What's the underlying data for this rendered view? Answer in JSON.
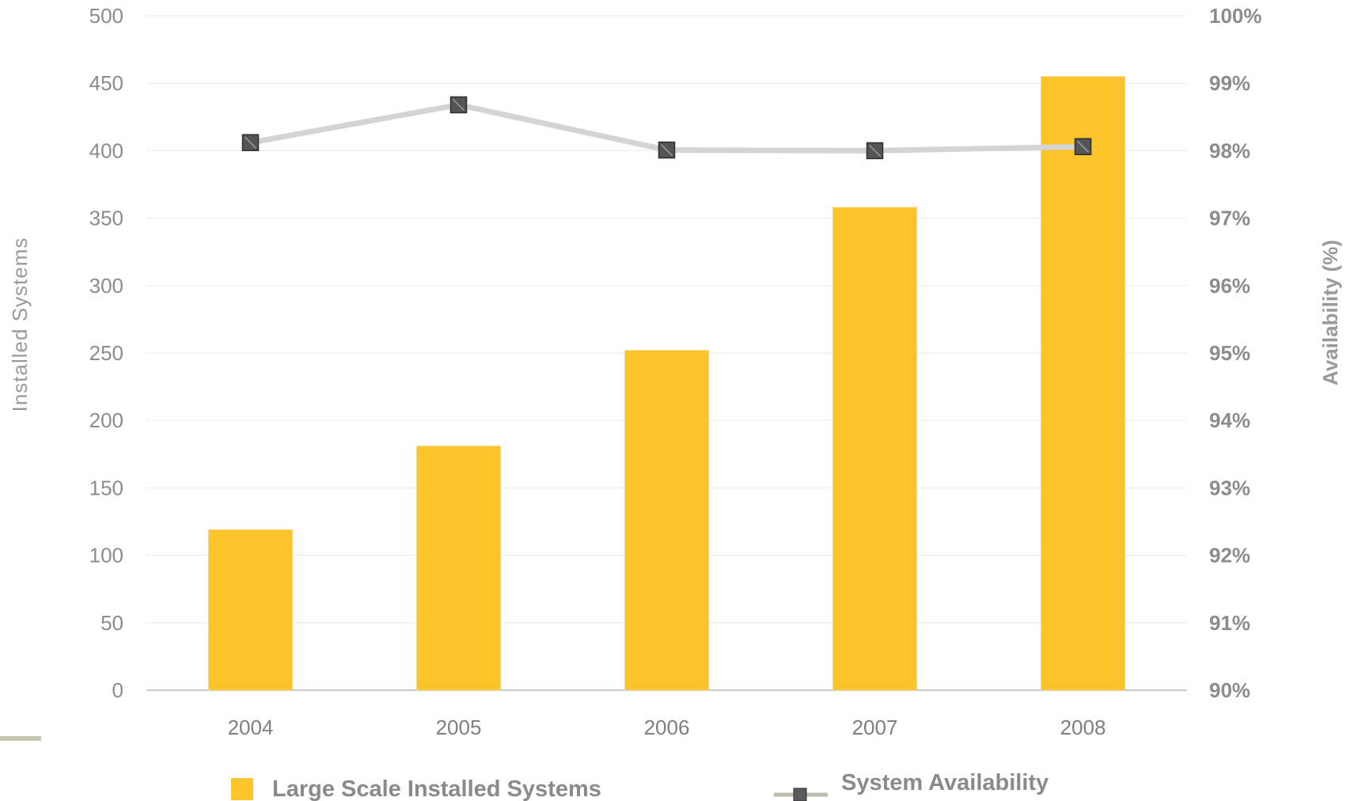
{
  "chart_data": {
    "type": "bar",
    "categories": [
      "2004",
      "2005",
      "2006",
      "2007",
      "2008"
    ],
    "series": [
      {
        "name": "Large Scale Installed Systems",
        "type": "bar",
        "axis": "left",
        "values": [
          119,
          181,
          252,
          358,
          455
        ],
        "color": "#FBC42A"
      },
      {
        "name": "System Availability",
        "type": "line",
        "axis": "right",
        "values": [
          98.12,
          98.68,
          98.01,
          98.0,
          98.06
        ],
        "color": "#d4d4d4",
        "marker_color": "#555555"
      }
    ],
    "ylabel": "Installed  Systems",
    "y2label": "Availability (%)",
    "ylim": [
      0,
      500
    ],
    "y2lim": [
      90,
      100
    ],
    "y_ticks": [
      "0",
      "50",
      "100",
      "150",
      "200",
      "250",
      "300",
      "350",
      "400",
      "450",
      "500"
    ],
    "y2_ticks": [
      "90%",
      "91%",
      "92%",
      "93%",
      "94%",
      "95%",
      "96%",
      "97%",
      "98%",
      "99%",
      "100%"
    ],
    "grid": true,
    "legend_position": "bottom"
  }
}
